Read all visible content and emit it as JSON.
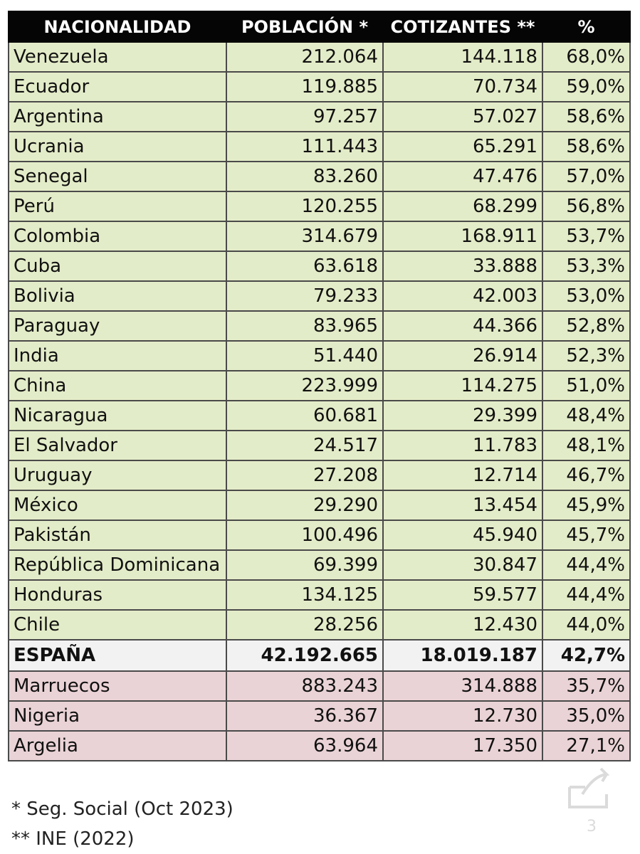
{
  "table": {
    "headers": [
      "NACIONALIDAD",
      "POBLACIÓN *",
      "COTIZANTES **",
      "%"
    ],
    "rows": [
      [
        "Venezuela",
        "212.064",
        "144.118",
        "68,0%"
      ],
      [
        "Ecuador",
        "119.885",
        "70.734",
        "59,0%"
      ],
      [
        "Argentina",
        "97.257",
        "57.027",
        "58,6%"
      ],
      [
        "Ucrania",
        "111.443",
        "65.291",
        "58,6%"
      ],
      [
        "Senegal",
        "83.260",
        "47.476",
        "57,0%"
      ],
      [
        "Perú",
        "120.255",
        "68.299",
        "56,8%"
      ],
      [
        "Colombia",
        "314.679",
        "168.911",
        "53,7%"
      ],
      [
        "Cuba",
        "63.618",
        "33.888",
        "53,3%"
      ],
      [
        "Bolivia",
        "79.233",
        "42.003",
        "53,0%"
      ],
      [
        "Paraguay",
        "83.965",
        "44.366",
        "52,8%"
      ],
      [
        "India",
        "51.440",
        "26.914",
        "52,3%"
      ],
      [
        "China",
        "223.999",
        "114.275",
        "51,0%"
      ],
      [
        "Nicaragua",
        "60.681",
        "29.399",
        "48,4%"
      ],
      [
        "El Salvador",
        "24.517",
        "11.783",
        "48,1%"
      ],
      [
        "Uruguay",
        "27.208",
        "12.714",
        "46,7%"
      ],
      [
        "México",
        "29.290",
        "13.454",
        "45,9%"
      ],
      [
        "Pakistán",
        "100.496",
        "45.940",
        "45,7%"
      ],
      [
        "República Dominicana",
        "69.399",
        "30.847",
        "44,4%"
      ],
      [
        "Honduras",
        "134.125",
        "59.577",
        "44,4%"
      ],
      [
        "Chile",
        "28.256",
        "12.430",
        "44,0%"
      ],
      [
        "ESPAÑA",
        "42.192.665",
        "18.019.187",
        "42,7%"
      ],
      [
        "Marruecos",
        "883.243",
        "314.888",
        "35,7%"
      ],
      [
        "Nigeria",
        "36.367",
        "12.730",
        "35,0%"
      ],
      [
        "Argelia",
        "63.964",
        "17.350",
        "27,1%"
      ]
    ],
    "row_styles": [
      "green",
      "green",
      "green",
      "green",
      "green",
      "green",
      "green",
      "green",
      "green",
      "green",
      "green",
      "green",
      "green",
      "green",
      "green",
      "green",
      "green",
      "green",
      "green",
      "green",
      "highlight",
      "pink",
      "pink",
      "pink"
    ]
  },
  "notes": {
    "note1": "* Seg. Social (Oct 2023)",
    "note2": "** INE (2022)"
  },
  "watermark": {
    "icon": "share-icon",
    "number": "3"
  },
  "colors": {
    "header_bg": "#050505",
    "green_row": "#e3ecc8",
    "highlight_row": "#f2f2f2",
    "pink_row": "#ead3d6"
  }
}
